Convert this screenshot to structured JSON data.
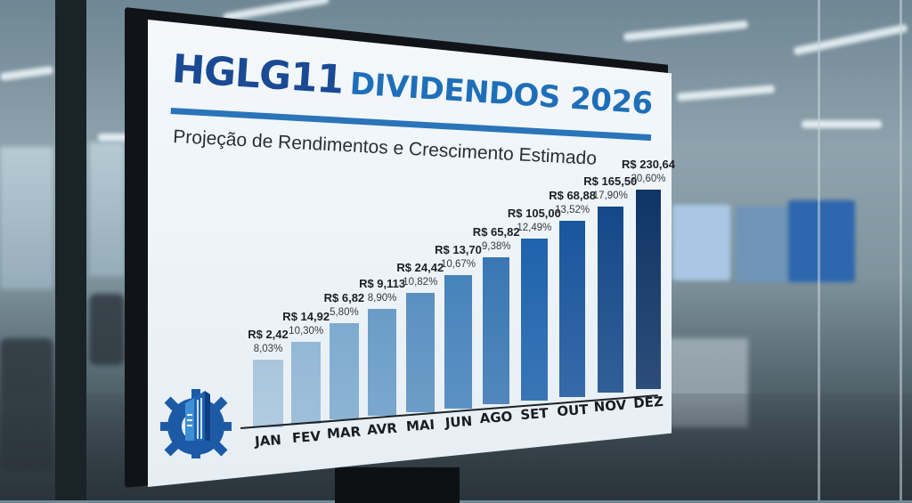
{
  "sign": {
    "ticker": "HGLG11",
    "title": "DIVIDENDOS 2026",
    "subtitle": "Projeção de Rendimentos e Crescimento Estimado"
  },
  "logo": {
    "icon": "building-gear-icon"
  },
  "colors": {
    "title_dark": "#1a4a94",
    "title_accent": "#1f6fb8",
    "rule": "#2a74ba",
    "bar_start": "#a9c6dc",
    "bar_end": "#0f3466"
  },
  "chart_data": {
    "type": "bar",
    "title": "HGLG11 DIVIDENDOS 2026",
    "subtitle": "Projeção de Rendimentos e Crescimento Estimado",
    "xlabel": "",
    "ylabel": "",
    "grid": false,
    "legend": "none",
    "categories": [
      "JAN",
      "FEV",
      "MAR",
      "AVR",
      "MAI",
      "JUN",
      "AGO",
      "SET",
      "OUT",
      "NOV",
      "DEZ"
    ],
    "value_labels": [
      "R$ 2,42",
      "R$ 14,92",
      "R$ 6,82",
      "R$ 9,113",
      "R$ 24,42",
      "R$ 13,70",
      "R$ 65,82",
      "R$ 105,00",
      "R$ 68,88",
      "R$ 165,50",
      "R$ 230,64"
    ],
    "values": [
      2.42,
      14.92,
      6.82,
      9.113,
      24.42,
      13.7,
      65.82,
      105.0,
      68.88,
      165.5,
      230.64
    ],
    "pct_labels": [
      "8,03%",
      "10,30%",
      "5,80%",
      "8,90%",
      "10,82%",
      "10,67%",
      "9,38%",
      "12,49%",
      "13,52%",
      "17,90%",
      "20,60%"
    ],
    "pct_values": [
      8.03,
      10.3,
      5.8,
      8.9,
      10.82,
      10.67,
      9.38,
      12.49,
      13.52,
      17.9,
      20.6
    ]
  }
}
